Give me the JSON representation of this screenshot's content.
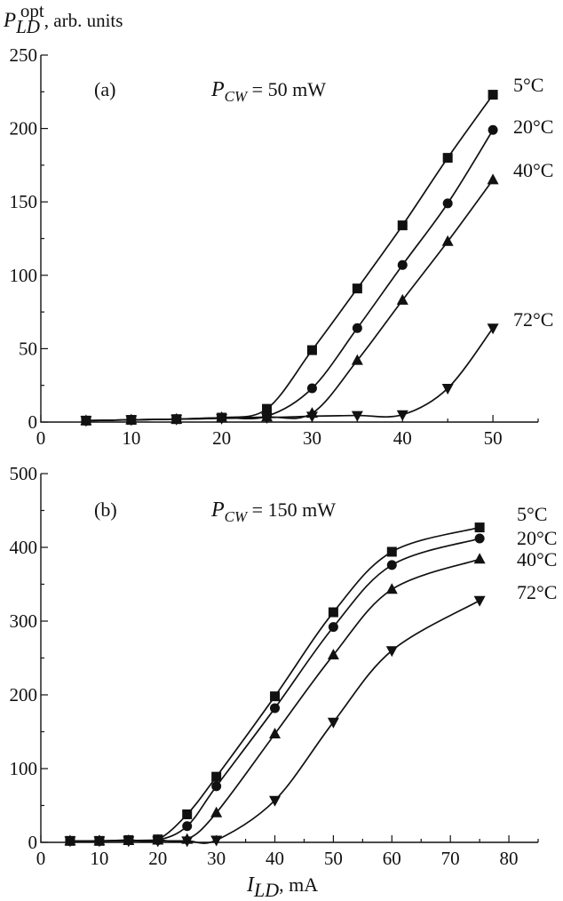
{
  "ylabel": {
    "main": "P",
    "sub": "LD",
    "sup": "opt",
    "rest": ", arb. units"
  },
  "xlabel": {
    "main": "I",
    "sub": "LD",
    "rest": ", mA"
  },
  "chart_data": [
    {
      "type": "line",
      "panel_label": "(a)",
      "annotation": {
        "main": "P",
        "sub": "CW",
        "rest": " = 50 mW"
      },
      "xlim": [
        0,
        55
      ],
      "ylim": [
        0,
        250
      ],
      "xticks": [
        0,
        10,
        20,
        30,
        40,
        50
      ],
      "yticks": [
        0,
        50,
        100,
        150,
        200,
        250
      ],
      "series": [
        {
          "name": "5°C",
          "marker": "square",
          "x": [
            5,
            10,
            15,
            20,
            25,
            30,
            35,
            40,
            45,
            50
          ],
          "y": [
            1,
            1.5,
            2,
            3,
            9,
            49,
            91,
            134,
            180,
            223
          ]
        },
        {
          "name": "20°C",
          "marker": "circle",
          "x": [
            5,
            10,
            15,
            20,
            25,
            30,
            35,
            40,
            45,
            50
          ],
          "y": [
            1,
            1.5,
            2,
            3,
            4,
            23,
            64,
            107,
            149,
            199
          ]
        },
        {
          "name": "40°C",
          "marker": "triangle-up",
          "x": [
            5,
            10,
            15,
            20,
            25,
            30,
            35,
            40,
            45,
            50
          ],
          "y": [
            1,
            1.5,
            2,
            3,
            3.5,
            6,
            42,
            83,
            123,
            165
          ]
        },
        {
          "name": "72°C",
          "marker": "triangle-down",
          "x": [
            5,
            10,
            15,
            20,
            25,
            30,
            35,
            40,
            45,
            50
          ],
          "y": [
            1,
            1.5,
            2,
            2.5,
            3,
            4,
            4.5,
            5,
            23,
            64
          ]
        }
      ]
    },
    {
      "type": "line",
      "panel_label": "(b)",
      "annotation": {
        "main": "P",
        "sub": "CW",
        "rest": " = 150 mW"
      },
      "xlim": [
        0,
        85
      ],
      "ylim": [
        0,
        500
      ],
      "xticks": [
        0,
        10,
        20,
        30,
        40,
        50,
        60,
        70,
        80
      ],
      "yticks": [
        0,
        100,
        200,
        300,
        400,
        500
      ],
      "series": [
        {
          "name": "5°C",
          "marker": "square",
          "x": [
            5,
            10,
            15,
            20,
            25,
            30,
            40,
            50,
            60,
            75
          ],
          "y": [
            2,
            2,
            3,
            4,
            38,
            89,
            198,
            312,
            394,
            427
          ]
        },
        {
          "name": "20°C",
          "marker": "circle",
          "x": [
            5,
            10,
            15,
            20,
            25,
            30,
            40,
            50,
            60,
            75
          ],
          "y": [
            2,
            2,
            3,
            3,
            22,
            76,
            182,
            292,
            376,
            412
          ]
        },
        {
          "name": "40°C",
          "marker": "triangle-up",
          "x": [
            5,
            10,
            15,
            20,
            25,
            30,
            40,
            50,
            60,
            75
          ],
          "y": [
            2,
            2,
            2.5,
            3,
            4,
            40,
            147,
            254,
            343,
            384
          ]
        },
        {
          "name": "72°C",
          "marker": "triangle-down",
          "x": [
            5,
            10,
            15,
            20,
            25,
            30,
            40,
            50,
            60,
            75
          ],
          "y": [
            2,
            2,
            2,
            2,
            2,
            3,
            57,
            163,
            260,
            328
          ]
        }
      ]
    }
  ]
}
